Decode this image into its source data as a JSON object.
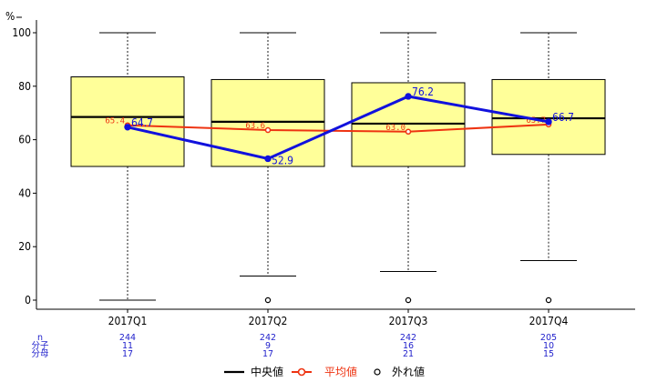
{
  "chart_data": {
    "type": "box",
    "y_unit_label": "%",
    "ylim": [
      0,
      100
    ],
    "yticks": [
      0,
      20,
      40,
      60,
      80,
      100
    ],
    "categories": [
      "2017Q1",
      "2017Q2",
      "2017Q3",
      "2017Q4"
    ],
    "boxes": [
      {
        "whisker_low": 0,
        "q1": 50,
        "median": 68.5,
        "q3": 83.5,
        "whisker_high": 100,
        "outliers": []
      },
      {
        "whisker_low": 9,
        "q1": 50,
        "median": 66.7,
        "q3": 82.5,
        "whisker_high": 100,
        "outliers": [
          0
        ]
      },
      {
        "whisker_low": 10.7,
        "q1": 50,
        "median": 66.0,
        "q3": 81.3,
        "whisker_high": 100,
        "outliers": [
          0
        ]
      },
      {
        "whisker_low": 14.8,
        "q1": 54.5,
        "median": 68.0,
        "q3": 82.5,
        "whisker_high": 100,
        "outliers": [
          0
        ]
      }
    ],
    "series": [
      {
        "name": "平均値",
        "color": "#ee3311",
        "values": [
          65.4,
          63.6,
          63.0,
          65.7
        ],
        "labels": [
          "65.4",
          "63.6",
          "63.0",
          "65.7"
        ]
      },
      {
        "name": "",
        "color": "#1111dd",
        "values": [
          64.7,
          52.9,
          76.2,
          66.7
        ],
        "labels": [
          "64.7",
          "52.9",
          "76.2",
          "66.7"
        ]
      }
    ],
    "stats_labels": [
      "n",
      "分子",
      "分母"
    ],
    "stats": [
      {
        "n": "244",
        "num": "11",
        "den": "17"
      },
      {
        "n": "242",
        "num": "9",
        "den": "17"
      },
      {
        "n": "242",
        "num": "16",
        "den": "21"
      },
      {
        "n": "205",
        "num": "10",
        "den": "15"
      }
    ],
    "legend": {
      "position": "bottom",
      "items": [
        "中央値",
        "平均値",
        "外れ値"
      ]
    },
    "colors": {
      "box_fill": "#ffff99",
      "box_stroke": "#000000",
      "mean_line": "#ee3311",
      "value_line": "#1111dd"
    }
  }
}
